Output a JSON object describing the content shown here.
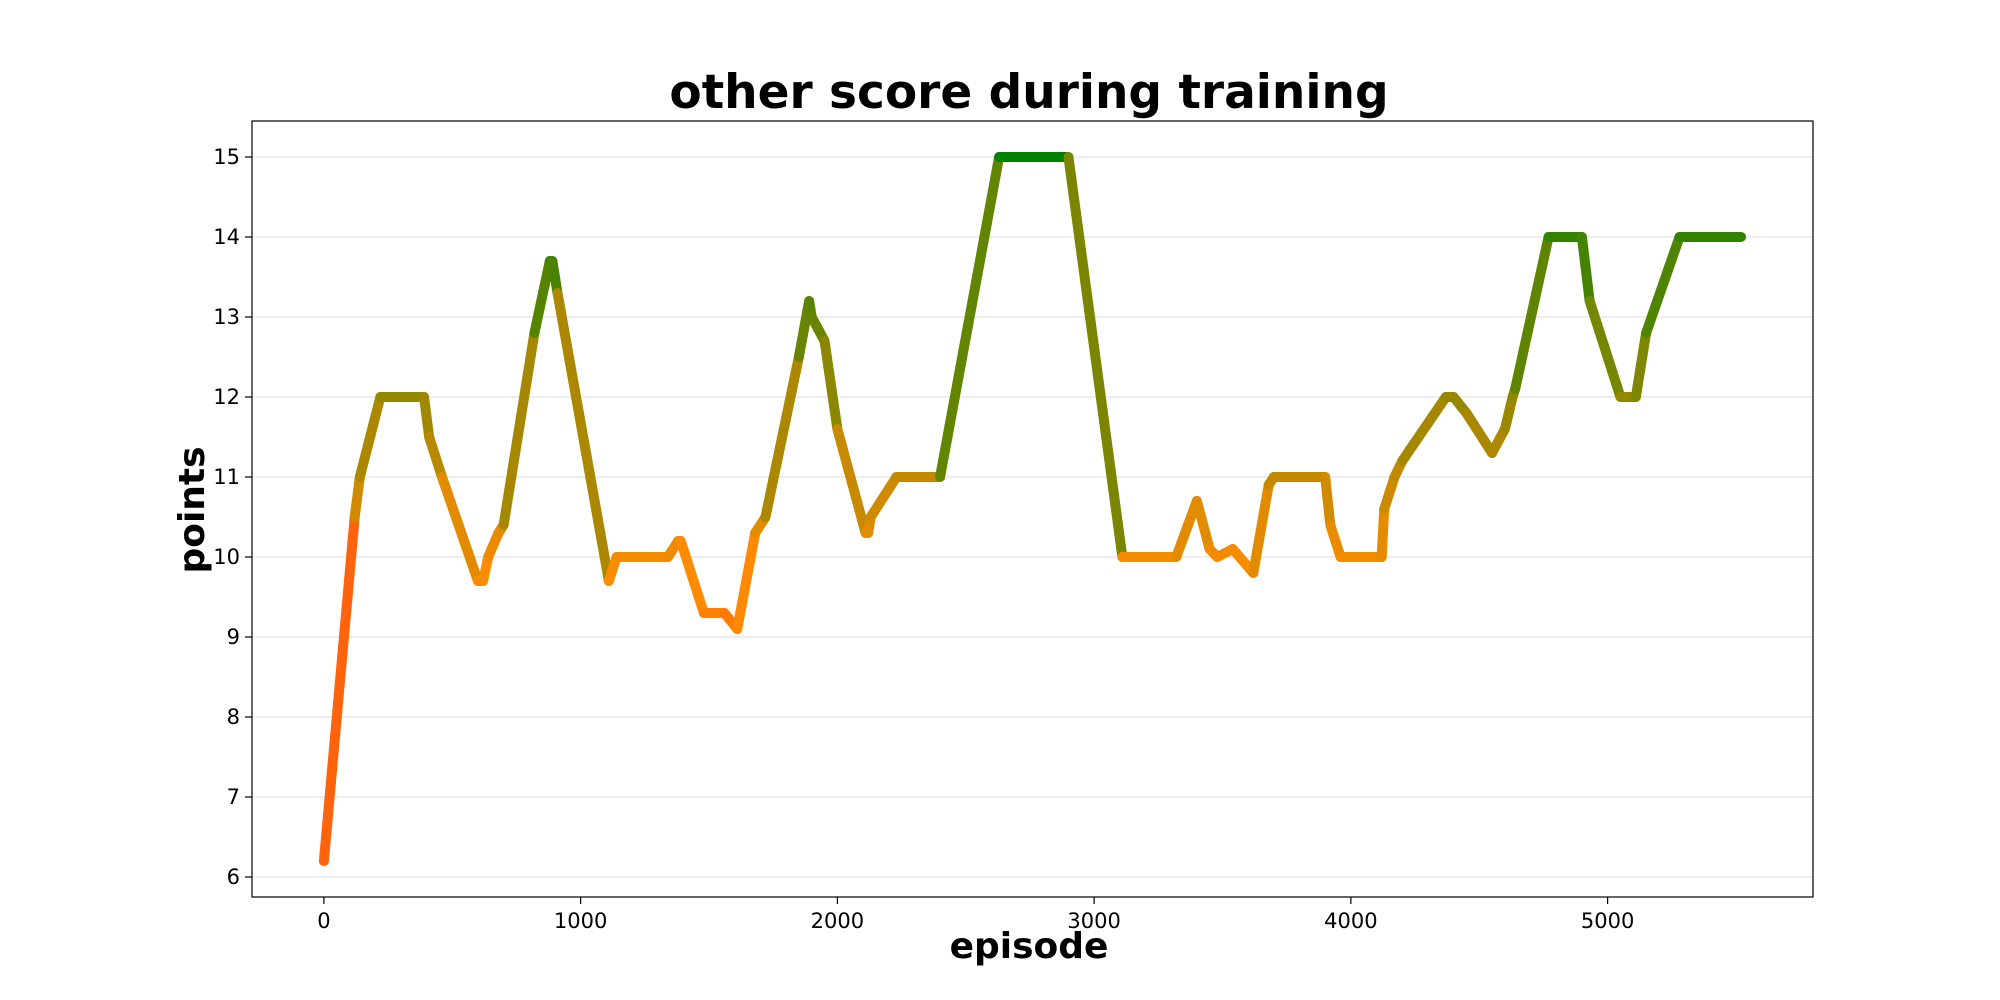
{
  "chart_data": {
    "type": "line",
    "title": "other score during training",
    "xlabel": "episode",
    "ylabel": "points",
    "xlim": [
      -280,
      5800
    ],
    "ylim": [
      5.75,
      15.45
    ],
    "xticks": [
      0,
      1000,
      2000,
      3000,
      4000,
      5000
    ],
    "yticks": [
      6,
      7,
      8,
      9,
      10,
      11,
      12,
      13,
      14,
      15
    ],
    "grid": "y",
    "legend": "none",
    "color_scale": {
      "low": "#ff2020",
      "mid": "#ff8c00",
      "high": "#008000",
      "low_value": 6,
      "high_value": 15
    },
    "series": [
      {
        "x": [
          0,
          120,
          140,
          220,
          390,
          410,
          460,
          600,
          620,
          640,
          680,
          700,
          820,
          880,
          890,
          910,
          1110,
          1140,
          1340,
          1380,
          1390,
          1480,
          1560,
          1610,
          1680,
          1720,
          1850,
          1890,
          1900,
          1950,
          2000,
          2110,
          2120,
          2130,
          2230,
          2400,
          2630,
          2900,
          3110,
          3120,
          3320,
          3400,
          3450,
          3480,
          3540,
          3620,
          3680,
          3700,
          3900,
          3920,
          3960,
          4120,
          4130,
          4170,
          4200,
          4370,
          4400,
          4450,
          4550,
          4600,
          4630,
          4640,
          4770,
          4900,
          4930,
          5050,
          5100,
          5110,
          5150,
          5280,
          5520
        ],
        "y": [
          6.2,
          10.5,
          11.0,
          12.0,
          12.0,
          11.5,
          11.0,
          9.7,
          9.7,
          10.0,
          10.3,
          10.4,
          12.8,
          13.7,
          13.7,
          13.3,
          9.7,
          10.0,
          10.0,
          10.2,
          10.2,
          9.3,
          9.3,
          9.1,
          10.3,
          10.5,
          12.5,
          13.2,
          13.0,
          12.7,
          11.6,
          10.3,
          10.3,
          10.5,
          11.0,
          11.0,
          15.0,
          15.0,
          10.0,
          10.0,
          10.0,
          10.7,
          10.1,
          10.0,
          10.1,
          9.8,
          10.9,
          11.0,
          11.0,
          10.4,
          10.0,
          10.0,
          10.6,
          11.0,
          11.2,
          12.0,
          12.0,
          11.8,
          11.3,
          11.6,
          12.0,
          12.1,
          14.0,
          14.0,
          13.2,
          12.0,
          12.0,
          12.0,
          12.8,
          14.0,
          14.0
        ]
      }
    ]
  }
}
